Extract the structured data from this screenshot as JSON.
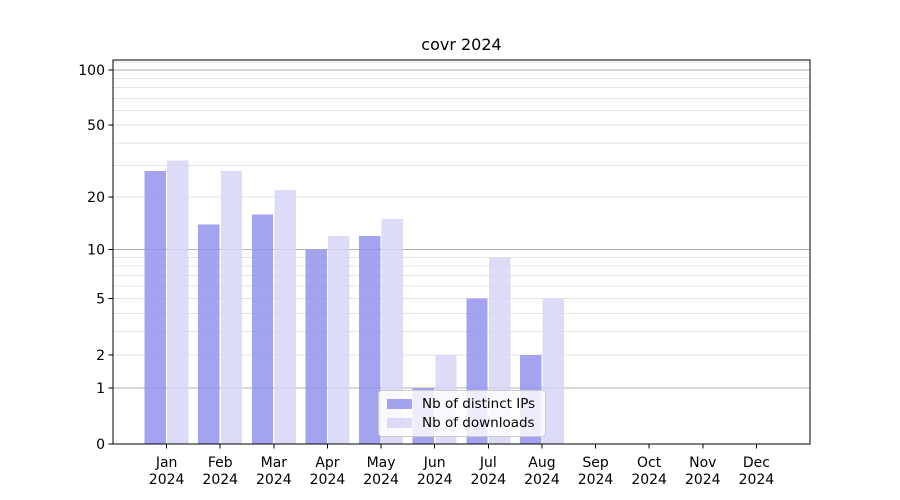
{
  "title": "covr 2024",
  "legend": {
    "items": [
      {
        "label": "Nb of distinct IPs",
        "key": "ips"
      },
      {
        "label": "Nb of downloads",
        "key": "downloads"
      }
    ]
  },
  "chart_data": {
    "type": "bar",
    "title": "covr 2024",
    "categories": [
      "Jan",
      "Feb",
      "Mar",
      "Apr",
      "May",
      "Jun",
      "Jul",
      "Aug",
      "Sep",
      "Oct",
      "Nov",
      "Dec"
    ],
    "year": "2024",
    "series": [
      {
        "name": "Nb of distinct IPs",
        "color": "#9393ec",
        "values": [
          28,
          14,
          16,
          10,
          12,
          1,
          5,
          2,
          0,
          0,
          0,
          0
        ]
      },
      {
        "name": "Nb of downloads",
        "color": "#d6d6f7",
        "values": [
          32,
          28,
          22,
          12,
          15,
          2,
          9,
          5,
          0,
          0,
          0,
          0
        ]
      }
    ],
    "bar_opacity": 0.85,
    "yscale": "log1p",
    "ylim": [
      0,
      113
    ],
    "ytick_labels": [
      "0",
      "1",
      "2",
      "5",
      "10",
      "20",
      "50",
      "100"
    ],
    "yticks": [
      0,
      1,
      2,
      5,
      10,
      20,
      50,
      100
    ],
    "grid_major": [
      1,
      10,
      100
    ],
    "grid_minor": [
      2,
      3,
      4,
      5,
      6,
      7,
      8,
      9,
      20,
      30,
      40,
      50,
      60,
      70,
      80,
      90,
      110
    ],
    "grid_major_color": "#b3b3b3",
    "grid_minor_color": "#e4e4e4",
    "legend_position": "lower-center-right",
    "grid": "on",
    "xlabel": "",
    "ylabel": ""
  }
}
